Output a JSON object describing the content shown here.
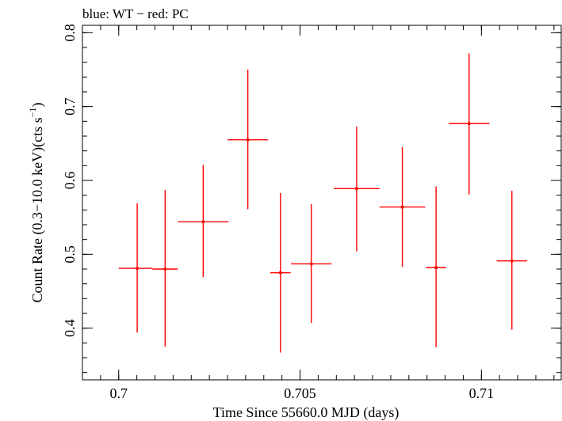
{
  "chart_data": {
    "type": "scatter",
    "title": "blue: WT − red: PC",
    "xlabel": "Time Since 55660.0 MJD (days)",
    "ylabel_main": "Count Rate (0.3−10.0 keV)(cts s",
    "ylabel_sup": "−1",
    "ylabel_end": ")",
    "xlim": [
      0.699,
      0.7122
    ],
    "ylim": [
      0.33,
      0.81
    ],
    "x_ticks": [
      {
        "value": 0.7,
        "label": "0.7"
      },
      {
        "value": 0.705,
        "label": "0.705"
      },
      {
        "value": 0.71,
        "label": "0.71"
      }
    ],
    "y_ticks": [
      {
        "value": 0.4,
        "label": "0.4"
      },
      {
        "value": 0.5,
        "label": "0.5"
      },
      {
        "value": 0.6,
        "label": "0.6"
      },
      {
        "value": 0.7,
        "label": "0.7"
      },
      {
        "value": 0.8,
        "label": "0.8"
      }
    ],
    "x_minor_step": 0.0005,
    "y_minor_step": 0.02,
    "grid": false,
    "series": [
      {
        "name": "PC",
        "color": "#ff0000",
        "points": [
          {
            "x": 0.70051,
            "xerr_lo": 0.00051,
            "xerr_hi": 0.00042,
            "y": 0.481,
            "yerr_lo": 0.087,
            "yerr_hi": 0.088
          },
          {
            "x": 0.70128,
            "xerr_lo": 0.00035,
            "xerr_hi": 0.00035,
            "y": 0.48,
            "yerr_lo": 0.105,
            "yerr_hi": 0.107
          },
          {
            "x": 0.70233,
            "xerr_lo": 0.0007,
            "xerr_hi": 0.0007,
            "y": 0.544,
            "yerr_lo": 0.075,
            "yerr_hi": 0.077
          },
          {
            "x": 0.70356,
            "xerr_lo": 0.00056,
            "xerr_hi": 0.00056,
            "y": 0.655,
            "yerr_lo": 0.094,
            "yerr_hi": 0.095
          },
          {
            "x": 0.70446,
            "xerr_lo": 0.00028,
            "xerr_hi": 0.00028,
            "y": 0.475,
            "yerr_lo": 0.108,
            "yerr_hi": 0.108
          },
          {
            "x": 0.70531,
            "xerr_lo": 0.00056,
            "xerr_hi": 0.00056,
            "y": 0.487,
            "yerr_lo": 0.08,
            "yerr_hi": 0.081
          },
          {
            "x": 0.70656,
            "xerr_lo": 0.00063,
            "xerr_hi": 0.00063,
            "y": 0.589,
            "yerr_lo": 0.085,
            "yerr_hi": 0.084
          },
          {
            "x": 0.70782,
            "xerr_lo": 0.00063,
            "xerr_hi": 0.00063,
            "y": 0.564,
            "yerr_lo": 0.081,
            "yerr_hi": 0.081
          },
          {
            "x": 0.70875,
            "xerr_lo": 0.00028,
            "xerr_hi": 0.00028,
            "y": 0.482,
            "yerr_lo": 0.108,
            "yerr_hi": 0.11
          },
          {
            "x": 0.70966,
            "xerr_lo": 0.00056,
            "xerr_hi": 0.00056,
            "y": 0.677,
            "yerr_lo": 0.096,
            "yerr_hi": 0.095
          },
          {
            "x": 0.71084,
            "xerr_lo": 0.00042,
            "xerr_hi": 0.00042,
            "y": 0.491,
            "yerr_lo": 0.093,
            "yerr_hi": 0.095
          }
        ]
      }
    ]
  }
}
